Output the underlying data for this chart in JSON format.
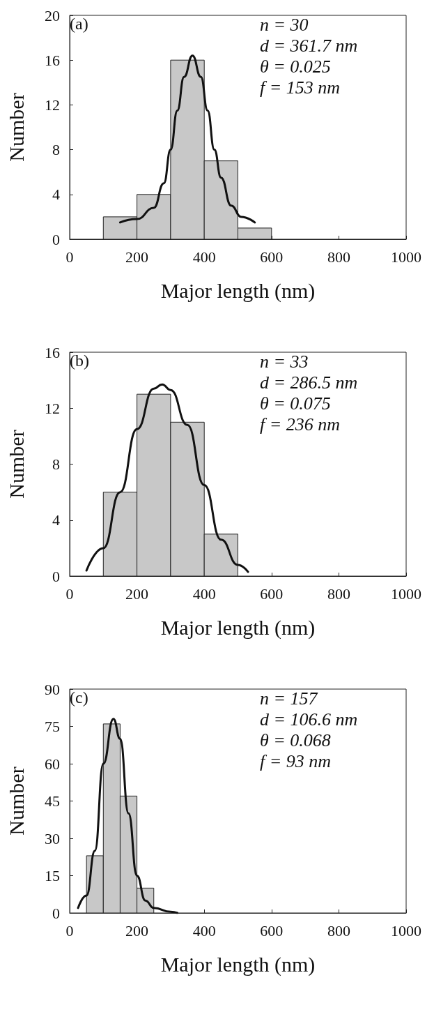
{
  "chart_data": [
    {
      "type": "histogram",
      "xlabel": "Major length (nm)",
      "ylabel": "Number",
      "annotations": [
        "(a)",
        "n = 30",
        "d = 361.7 nm",
        "θ = 0.025",
        "f = 153 nm"
      ],
      "bins": [
        100,
        200,
        300,
        400,
        500,
        600
      ],
      "values": [
        2,
        4,
        16,
        7,
        1
      ],
      "color": "#c8c8c8",
      "series": [
        {
          "type": "line",
          "color": "#111111",
          "x": [
            150,
            200,
            250,
            280,
            300,
            320,
            340,
            365,
            390,
            410,
            430,
            450,
            480,
            510,
            550
          ],
          "values": [
            1.5,
            1.8,
            2.8,
            5,
            8,
            11.5,
            14.5,
            16.4,
            14.5,
            11.5,
            8,
            5.5,
            3,
            2,
            1.5
          ]
        }
      ],
      "marker": "none",
      "grid": false,
      "xlim": [
        0,
        1000
      ],
      "xticks": [
        0,
        200,
        400,
        600,
        800,
        1000
      ],
      "ylim": [
        0,
        20
      ],
      "yticks": [
        0,
        4,
        8,
        12,
        16,
        20
      ]
    },
    {
      "type": "histogram",
      "xlabel": "Major length (nm)",
      "ylabel": "Number",
      "annotations": [
        "(b)",
        "n = 33",
        "d = 286.5 nm",
        "θ = 0.075",
        "f = 236 nm"
      ],
      "bins": [
        100,
        200,
        300,
        400,
        500
      ],
      "values": [
        6,
        13,
        11,
        3
      ],
      "color": "#c8c8c8",
      "series": [
        {
          "type": "line",
          "color": "#111111",
          "x": [
            50,
            100,
            150,
            200,
            250,
            275,
            300,
            350,
            400,
            450,
            500,
            530
          ],
          "values": [
            0.4,
            2,
            6,
            10.5,
            13.4,
            13.7,
            13.3,
            10.8,
            6.5,
            2.6,
            0.8,
            0.3
          ]
        }
      ],
      "marker": "none",
      "grid": false,
      "xlim": [
        0,
        1000
      ],
      "xticks": [
        0,
        200,
        400,
        600,
        800,
        1000
      ],
      "ylim": [
        0,
        16
      ],
      "yticks": [
        0,
        4,
        8,
        12,
        16
      ]
    },
    {
      "type": "histogram",
      "xlabel": "Major length (nm)",
      "ylabel": "Number",
      "annotations": [
        "(c)",
        "n = 157",
        "d = 106.6 nm",
        "θ = 0.068",
        "f = 93 nm"
      ],
      "bins": [
        50,
        100,
        150,
        200,
        250
      ],
      "values": [
        23,
        76,
        47,
        10
      ],
      "color": "#c8c8c8",
      "series": [
        {
          "type": "line",
          "color": "#111111",
          "x": [
            25,
            50,
            75,
            100,
            130,
            150,
            175,
            200,
            225,
            250,
            300,
            320
          ],
          "values": [
            2,
            7,
            25,
            60,
            78,
            70,
            40,
            15,
            5,
            2,
            0.5,
            0
          ]
        }
      ],
      "marker": "none",
      "grid": false,
      "xlim": [
        0,
        1000
      ],
      "xticks": [
        0,
        200,
        400,
        600,
        800,
        1000
      ],
      "ylim": [
        0,
        90
      ],
      "yticks": [
        0,
        15,
        30,
        45,
        60,
        75,
        90
      ]
    }
  ]
}
